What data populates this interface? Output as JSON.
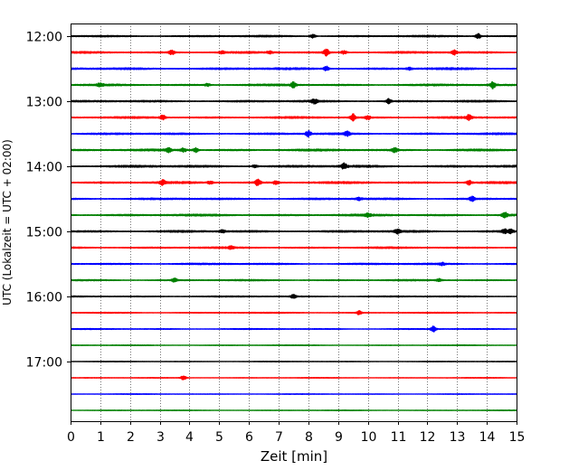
{
  "chart_data": {
    "type": "line",
    "title": "",
    "xlabel": "Zeit  [min]",
    "ylabel": "UTC (Lokalzeit = UTC + 02:00)",
    "xlim": [
      0,
      15
    ],
    "xticks": [
      0,
      1,
      2,
      3,
      4,
      5,
      6,
      7,
      8,
      9,
      10,
      11,
      12,
      13,
      14,
      15
    ],
    "ytick_labels": [
      "12:00",
      "13:00",
      "14:00",
      "15:00",
      "16:00",
      "17:00"
    ],
    "grid": "vertical dotted lines at each minute",
    "trace_interval_min": 15,
    "colors": [
      "#000000",
      "#ff0000",
      "#0000ff",
      "#008000"
    ],
    "traces": [
      {
        "start": "12:00",
        "color": "#000000",
        "amplitude": 0.8,
        "events": [
          {
            "t": 8.15,
            "a": 2.0
          },
          {
            "t": 13.7,
            "a": 3.0
          }
        ]
      },
      {
        "start": "12:15",
        "color": "#ff0000",
        "amplitude": 0.9,
        "events": [
          {
            "t": 3.4,
            "a": 2.5
          },
          {
            "t": 5.1,
            "a": 1.5
          },
          {
            "t": 6.7,
            "a": 1.2
          },
          {
            "t": 8.6,
            "a": 3.5
          },
          {
            "t": 9.2,
            "a": 2.0
          },
          {
            "t": 12.9,
            "a": 2.5
          }
        ]
      },
      {
        "start": "12:30",
        "color": "#0000ff",
        "amplitude": 1.0,
        "events": [
          {
            "t": 8.6,
            "a": 2.5
          },
          {
            "t": 11.4,
            "a": 1.5
          }
        ]
      },
      {
        "start": "12:45",
        "color": "#008000",
        "amplitude": 0.9,
        "events": [
          {
            "t": 1.0,
            "a": 2.0
          },
          {
            "t": 4.6,
            "a": 1.5
          },
          {
            "t": 7.5,
            "a": 3.0
          },
          {
            "t": 14.2,
            "a": 3.5
          }
        ]
      },
      {
        "start": "13:00",
        "color": "#000000",
        "amplitude": 0.9,
        "events": [
          {
            "t": 8.2,
            "a": 2.5
          },
          {
            "t": 10.7,
            "a": 2.5
          }
        ]
      },
      {
        "start": "13:15",
        "color": "#ff0000",
        "amplitude": 0.9,
        "events": [
          {
            "t": 3.1,
            "a": 2.5
          },
          {
            "t": 9.5,
            "a": 3.5
          },
          {
            "t": 10.0,
            "a": 2.0
          },
          {
            "t": 13.4,
            "a": 2.5
          }
        ]
      },
      {
        "start": "13:30",
        "color": "#0000ff",
        "amplitude": 0.9,
        "events": [
          {
            "t": 8.0,
            "a": 3.0
          },
          {
            "t": 9.3,
            "a": 2.5
          }
        ]
      },
      {
        "start": "13:45",
        "color": "#008000",
        "amplitude": 1.0,
        "events": [
          {
            "t": 3.3,
            "a": 2.0
          },
          {
            "t": 3.8,
            "a": 2.0
          },
          {
            "t": 4.2,
            "a": 2.5
          },
          {
            "t": 10.9,
            "a": 2.5
          }
        ]
      },
      {
        "start": "14:00",
        "color": "#000000",
        "amplitude": 1.1,
        "events": [
          {
            "t": 6.2,
            "a": 1.5
          },
          {
            "t": 9.2,
            "a": 3.0
          }
        ]
      },
      {
        "start": "14:15",
        "color": "#ff0000",
        "amplitude": 1.0,
        "events": [
          {
            "t": 3.1,
            "a": 2.5
          },
          {
            "t": 4.7,
            "a": 1.5
          },
          {
            "t": 6.3,
            "a": 3.5
          },
          {
            "t": 6.9,
            "a": 2.0
          },
          {
            "t": 13.4,
            "a": 2.5
          }
        ]
      },
      {
        "start": "14:30",
        "color": "#0000ff",
        "amplitude": 0.9,
        "events": [
          {
            "t": 9.7,
            "a": 1.5
          },
          {
            "t": 13.5,
            "a": 2.5
          }
        ]
      },
      {
        "start": "14:45",
        "color": "#008000",
        "amplitude": 1.0,
        "events": [
          {
            "t": 10.0,
            "a": 1.5
          },
          {
            "t": 14.6,
            "a": 3.0
          }
        ]
      },
      {
        "start": "15:00",
        "color": "#000000",
        "amplitude": 1.0,
        "events": [
          {
            "t": 5.1,
            "a": 1.5
          },
          {
            "t": 11.0,
            "a": 2.5
          },
          {
            "t": 14.6,
            "a": 2.0
          },
          {
            "t": 14.8,
            "a": 2.0
          }
        ]
      },
      {
        "start": "15:15",
        "color": "#ff0000",
        "amplitude": 0.8,
        "events": [
          {
            "t": 5.4,
            "a": 1.3
          }
        ]
      },
      {
        "start": "15:30",
        "color": "#0000ff",
        "amplitude": 0.8,
        "events": [
          {
            "t": 12.5,
            "a": 1.3
          }
        ]
      },
      {
        "start": "15:45",
        "color": "#008000",
        "amplitude": 0.7,
        "events": [
          {
            "t": 3.5,
            "a": 2.0
          },
          {
            "t": 12.4,
            "a": 1.5
          }
        ]
      },
      {
        "start": "16:00",
        "color": "#000000",
        "amplitude": 0.6,
        "events": [
          {
            "t": 7.5,
            "a": 2.0
          }
        ]
      },
      {
        "start": "16:15",
        "color": "#ff0000",
        "amplitude": 0.5,
        "events": [
          {
            "t": 9.7,
            "a": 2.0
          }
        ]
      },
      {
        "start": "16:30",
        "color": "#0000ff",
        "amplitude": 0.5,
        "events": [
          {
            "t": 12.2,
            "a": 3.0
          }
        ]
      },
      {
        "start": "16:45",
        "color": "#008000",
        "amplitude": 0.35,
        "events": []
      },
      {
        "start": "17:00",
        "color": "#000000",
        "amplitude": 0.3,
        "events": []
      },
      {
        "start": "17:15",
        "color": "#ff0000",
        "amplitude": 0.3,
        "events": [
          {
            "t": 3.8,
            "a": 2.5
          }
        ]
      },
      {
        "start": "17:30",
        "color": "#0000ff",
        "amplitude": 0.3,
        "events": []
      },
      {
        "start": "17:45",
        "color": "#008000",
        "amplitude": 0.3,
        "events": []
      }
    ]
  }
}
